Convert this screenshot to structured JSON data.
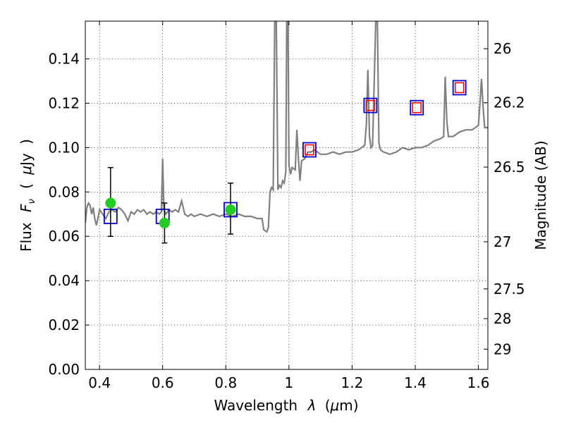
{
  "chart_data": {
    "type": "line",
    "title": "",
    "xlabel": {
      "prefix": "Wavelength",
      "symbol": "λ",
      "unit_open": "(",
      "unit_mu": "μ",
      "unit_m": "m)"
    },
    "ylabel": {
      "prefix": "Flux",
      "symbol": "F",
      "subscript": "ν",
      "unit_open": "(",
      "unit_mu": "μ",
      "unit_rest": "Jy",
      "unit_close": ")"
    },
    "ylabel_right": "Magnitude (AB)",
    "xlim": [
      0.355,
      1.63
    ],
    "ylim": [
      0.0,
      0.157
    ],
    "grid": true,
    "legend": "none",
    "x_ticks": [
      {
        "v": 0.4,
        "label": "0.4"
      },
      {
        "v": 0.6,
        "label": "0.6"
      },
      {
        "v": 0.8,
        "label": "0.8"
      },
      {
        "v": 1.0,
        "label": "1"
      },
      {
        "v": 1.2,
        "label": "1.2"
      },
      {
        "v": 1.4,
        "label": "1.4"
      },
      {
        "v": 1.6,
        "label": "1.6"
      }
    ],
    "y_ticks": [
      {
        "v": 0.0,
        "label": "0.00"
      },
      {
        "v": 0.02,
        "label": "0.02"
      },
      {
        "v": 0.04,
        "label": "0.04"
      },
      {
        "v": 0.06,
        "label": "0.06"
      },
      {
        "v": 0.08,
        "label": "0.08"
      },
      {
        "v": 0.1,
        "label": "0.10"
      },
      {
        "v": 0.12,
        "label": "0.12"
      },
      {
        "v": 0.14,
        "label": "0.14"
      }
    ],
    "right_ticks": [
      {
        "mag": 26,
        "label": "26"
      },
      {
        "mag": 26.2,
        "label": "26.2"
      },
      {
        "mag": 26.5,
        "label": "26.5"
      },
      {
        "mag": 27,
        "label": "27"
      },
      {
        "mag": 27.5,
        "label": "27.5"
      },
      {
        "mag": 28,
        "label": "28"
      },
      {
        "mag": 29,
        "label": "29"
      }
    ],
    "colors": {
      "spectrum": "#808080",
      "model_outer": "#0000cc",
      "model_inner": "#ff0000",
      "observed": "#22cc22",
      "errorbar": "#000000"
    },
    "series": [
      {
        "type": "line",
        "points": [
          [
            0.355,
            0.066
          ],
          [
            0.36,
            0.073
          ],
          [
            0.365,
            0.075
          ],
          [
            0.37,
            0.074
          ],
          [
            0.375,
            0.07
          ],
          [
            0.38,
            0.073
          ],
          [
            0.385,
            0.068
          ],
          [
            0.39,
            0.065
          ],
          [
            0.395,
            0.068
          ],
          [
            0.4,
            0.072
          ],
          [
            0.41,
            0.07
          ],
          [
            0.42,
            0.068
          ],
          [
            0.43,
            0.071
          ],
          [
            0.44,
            0.072
          ],
          [
            0.45,
            0.071
          ],
          [
            0.46,
            0.073
          ],
          [
            0.47,
            0.072
          ],
          [
            0.48,
            0.07
          ],
          [
            0.49,
            0.067
          ],
          [
            0.5,
            0.071
          ],
          [
            0.51,
            0.07
          ],
          [
            0.52,
            0.072
          ],
          [
            0.53,
            0.071
          ],
          [
            0.54,
            0.072
          ],
          [
            0.55,
            0.07
          ],
          [
            0.56,
            0.071
          ],
          [
            0.57,
            0.07
          ],
          [
            0.58,
            0.071
          ],
          [
            0.59,
            0.07
          ],
          [
            0.596,
            0.071
          ],
          [
            0.6,
            0.095
          ],
          [
            0.604,
            0.072
          ],
          [
            0.61,
            0.07
          ],
          [
            0.62,
            0.072
          ],
          [
            0.63,
            0.071
          ],
          [
            0.64,
            0.072
          ],
          [
            0.65,
            0.071
          ],
          [
            0.66,
            0.076
          ],
          [
            0.67,
            0.07
          ],
          [
            0.68,
            0.069
          ],
          [
            0.69,
            0.07
          ],
          [
            0.7,
            0.069
          ],
          [
            0.72,
            0.07
          ],
          [
            0.74,
            0.069
          ],
          [
            0.76,
            0.07
          ],
          [
            0.78,
            0.069
          ],
          [
            0.8,
            0.07
          ],
          [
            0.82,
            0.069
          ],
          [
            0.84,
            0.07
          ],
          [
            0.86,
            0.069
          ],
          [
            0.88,
            0.069
          ],
          [
            0.9,
            0.068
          ],
          [
            0.915,
            0.068
          ],
          [
            0.92,
            0.063
          ],
          [
            0.93,
            0.062
          ],
          [
            0.935,
            0.064
          ],
          [
            0.94,
            0.08
          ],
          [
            0.945,
            0.082
          ],
          [
            0.95,
            0.081
          ],
          [
            0.955,
            0.157
          ],
          [
            0.96,
            0.157
          ],
          [
            0.965,
            0.081
          ],
          [
            0.97,
            0.083
          ],
          [
            0.975,
            0.082
          ],
          [
            0.98,
            0.085
          ],
          [
            0.985,
            0.084
          ],
          [
            0.99,
            0.089
          ],
          [
            0.993,
            0.157
          ],
          [
            0.997,
            0.157
          ],
          [
            1.0,
            0.092
          ],
          [
            1.005,
            0.088
          ],
          [
            1.01,
            0.091
          ],
          [
            1.02,
            0.09
          ],
          [
            1.025,
            0.108
          ],
          [
            1.03,
            0.095
          ],
          [
            1.035,
            0.085
          ],
          [
            1.04,
            0.094
          ],
          [
            1.05,
            0.095
          ],
          [
            1.06,
            0.098
          ],
          [
            1.07,
            0.098
          ],
          [
            1.08,
            0.099
          ],
          [
            1.09,
            0.098
          ],
          [
            1.1,
            0.097
          ],
          [
            1.12,
            0.097
          ],
          [
            1.14,
            0.098
          ],
          [
            1.16,
            0.097
          ],
          [
            1.18,
            0.098
          ],
          [
            1.2,
            0.098
          ],
          [
            1.22,
            0.099
          ],
          [
            1.23,
            0.1
          ],
          [
            1.24,
            0.101
          ],
          [
            1.245,
            0.11
          ],
          [
            1.25,
            0.135
          ],
          [
            1.255,
            0.105
          ],
          [
            1.26,
            0.1
          ],
          [
            1.265,
            0.101
          ],
          [
            1.27,
            0.13
          ],
          [
            1.275,
            0.157
          ],
          [
            1.28,
            0.157
          ],
          [
            1.285,
            0.102
          ],
          [
            1.29,
            0.099
          ],
          [
            1.3,
            0.098
          ],
          [
            1.32,
            0.097
          ],
          [
            1.34,
            0.098
          ],
          [
            1.36,
            0.1
          ],
          [
            1.38,
            0.099
          ],
          [
            1.4,
            0.1
          ],
          [
            1.42,
            0.1
          ],
          [
            1.44,
            0.101
          ],
          [
            1.46,
            0.103
          ],
          [
            1.48,
            0.104
          ],
          [
            1.49,
            0.105
          ],
          [
            1.495,
            0.132
          ],
          [
            1.5,
            0.112
          ],
          [
            1.505,
            0.105
          ],
          [
            1.52,
            0.105
          ],
          [
            1.54,
            0.107
          ],
          [
            1.56,
            0.108
          ],
          [
            1.58,
            0.108
          ],
          [
            1.6,
            0.11
          ],
          [
            1.605,
            0.12
          ],
          [
            1.61,
            0.131
          ],
          [
            1.615,
            0.118
          ],
          [
            1.62,
            0.109
          ],
          [
            1.63,
            0.109
          ]
        ]
      },
      {
        "type": "scatter-square",
        "points": [
          [
            0.435,
            0.069
          ],
          [
            0.6,
            0.069
          ],
          [
            0.815,
            0.072
          ],
          [
            1.065,
            0.099
          ],
          [
            1.258,
            0.119
          ],
          [
            1.405,
            0.118
          ],
          [
            1.54,
            0.127
          ]
        ]
      },
      {
        "type": "scatter-square-inner",
        "points": [
          [
            1.065,
            0.099
          ],
          [
            1.258,
            0.119
          ],
          [
            1.405,
            0.118
          ],
          [
            1.54,
            0.127
          ]
        ]
      },
      {
        "type": "scatter-errorbar",
        "points": [
          {
            "x": 0.435,
            "y": 0.075,
            "lo": 0.06,
            "hi": 0.091
          },
          {
            "x": 0.606,
            "y": 0.066,
            "lo": 0.057,
            "hi": 0.075
          },
          {
            "x": 0.815,
            "y": 0.072,
            "lo": 0.061,
            "hi": 0.084
          }
        ]
      }
    ]
  }
}
